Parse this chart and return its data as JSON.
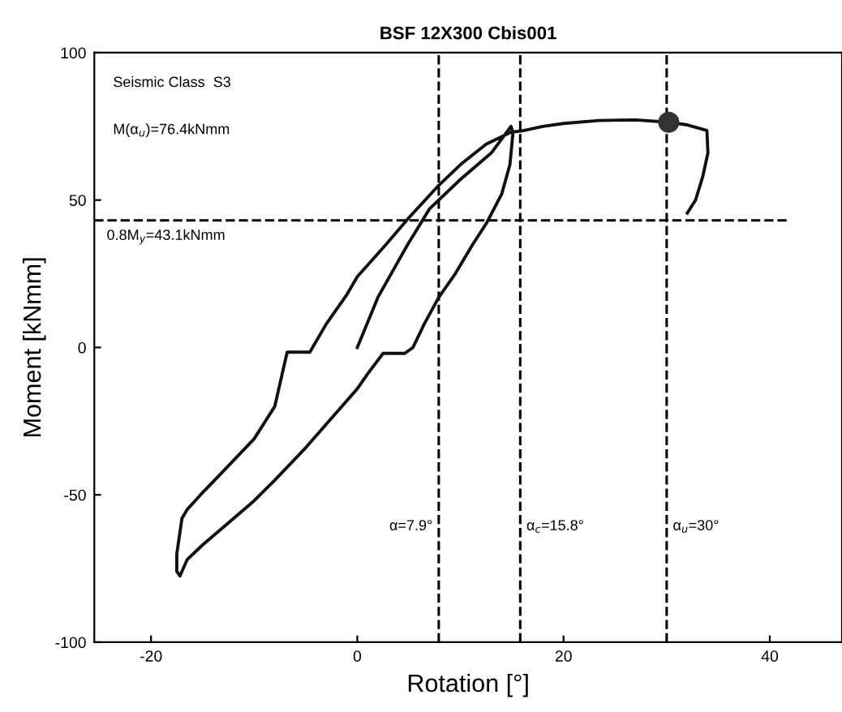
{
  "chart_data": {
    "type": "line",
    "title": "BSF 12X300 Cbis001",
    "xlabel": "Rotation [°]",
    "ylabel": "Moment [kNmm]",
    "xlim": [
      -25.5,
      47
    ],
    "ylim": [
      -100,
      100
    ],
    "xticks": [
      -20,
      0,
      20,
      40
    ],
    "yticks": [
      -100,
      -50,
      0,
      50,
      100
    ],
    "grid": false,
    "line_style": "solid",
    "marker": "none",
    "series": [
      {
        "color": "#111111",
        "x": [
          0,
          2,
          4.9,
          7,
          10,
          13,
          14.9,
          15.1,
          14.8,
          14,
          12.5,
          11.2,
          9.5,
          7.9,
          6.5,
          5.4,
          4.6,
          2.5,
          1,
          0,
          -2,
          -5,
          -8,
          -10,
          -13,
          -15,
          -16.5,
          -17.2,
          -17.5,
          -17.5,
          -17,
          -16.5,
          -15.2,
          -13,
          -10,
          -8,
          -6.8,
          -4.6,
          -3,
          -1,
          0,
          2.8,
          5,
          7.9,
          10,
          12.5,
          14.9,
          16,
          18,
          20,
          23.4,
          27,
          30.2,
          32,
          33.9,
          34,
          33.5,
          32.8,
          32
        ],
        "values": [
          0,
          17,
          35,
          47,
          57,
          66,
          75,
          73,
          62,
          52,
          42,
          35,
          25,
          17,
          8,
          0,
          -2,
          -2,
          -9,
          -14,
          -22,
          -34,
          -45,
          -52,
          -61,
          -67,
          -72,
          -77.5,
          -76,
          -70,
          -58,
          -55,
          -50,
          -42,
          -31,
          -20,
          -1.6,
          -1.6,
          8,
          18,
          24,
          35,
          44,
          55,
          62,
          69,
          73,
          73.5,
          75,
          76,
          77,
          77.2,
          76.4,
          75.5,
          73.6,
          66,
          58,
          50,
          45.6
        ]
      },
      {
        "type": "scatter",
        "color": "#333333",
        "marker": "circle",
        "x": [
          30.2
        ],
        "values": [
          76.4
        ]
      }
    ],
    "ref_lines": [
      {
        "axis": "x",
        "value": 7.9,
        "label": "α=7.9°"
      },
      {
        "axis": "x",
        "value": 15.8,
        "label": "α$_{c}$=15.8°"
      },
      {
        "axis": "x",
        "value": 30,
        "label": "α$_{u}$=30°"
      },
      {
        "axis": "y",
        "value": 43.1,
        "label": "0.8M$_{y}$=43.1kNmm"
      }
    ],
    "annotations": [
      "Seismic Class  S3",
      "M(α$_{u}$)=76.4kNmm"
    ]
  }
}
